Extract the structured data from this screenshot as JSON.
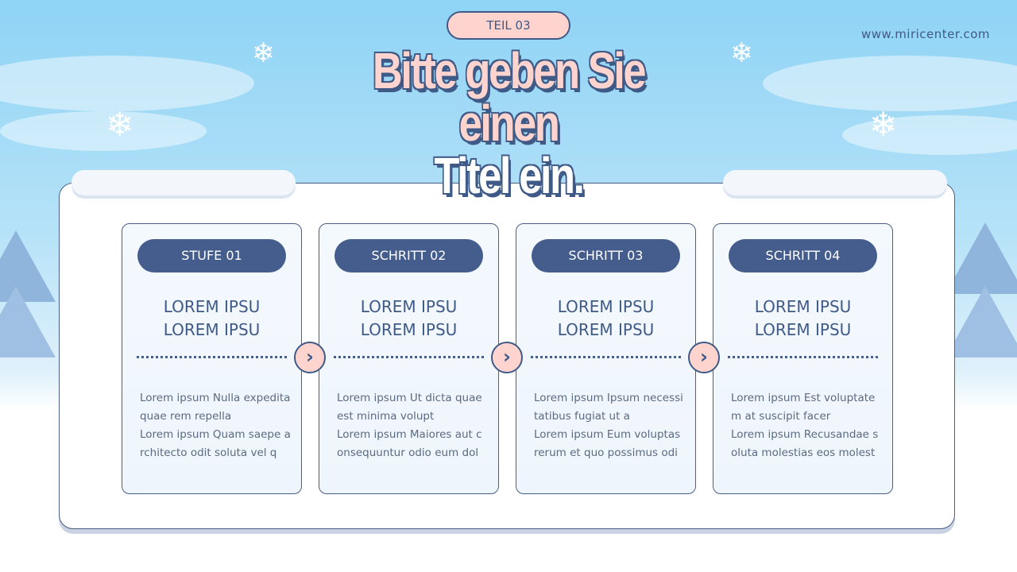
{
  "website": "www.miricenter.com",
  "title": {
    "line1": "Bitte geben Sie",
    "line2": "einen",
    "line3": "Titel ein."
  },
  "badge": "TEIL 03",
  "steps": [
    {
      "label": "STUFE 01",
      "heading": [
        "LOREM IPSU",
        "LOREM IPSU"
      ],
      "body": [
        "Lorem ipsum Nulla expedita",
        "quae rem repella",
        "Lorem ipsum Quam saepe a",
        "rchitecto odit soluta vel q"
      ]
    },
    {
      "label": "SCHRITT 02",
      "heading": [
        "LOREM IPSU",
        "LOREM IPSU"
      ],
      "body": [
        "Lorem ipsum Ut dicta quae",
        "est minima volupt",
        "Lorem ipsum Maiores aut c",
        "onsequuntur odio eum dol"
      ]
    },
    {
      "label": "SCHRITT 03",
      "heading": [
        "LOREM IPSU",
        "LOREM IPSU"
      ],
      "body": [
        "Lorem ipsum Ipsum necessi",
        "tatibus fugiat ut a",
        "Lorem ipsum Eum voluptas",
        "rerum et quo possimus odi"
      ]
    },
    {
      "label": "SCHRITT 04",
      "heading": [
        "LOREM IPSU",
        "LOREM IPSU"
      ],
      "body": [
        "Lorem ipsum Est voluptate",
        "m at suscipit facer",
        "Lorem ipsum Recusandae s",
        "oluta molestias eos molest"
      ]
    }
  ],
  "icons": {
    "arrow": "chevron-right-icon",
    "decor": "snowflake-icon"
  },
  "colors": {
    "navy": "#445d8c",
    "pink": "#ffd4cf",
    "sky": "#8fd3f5"
  }
}
